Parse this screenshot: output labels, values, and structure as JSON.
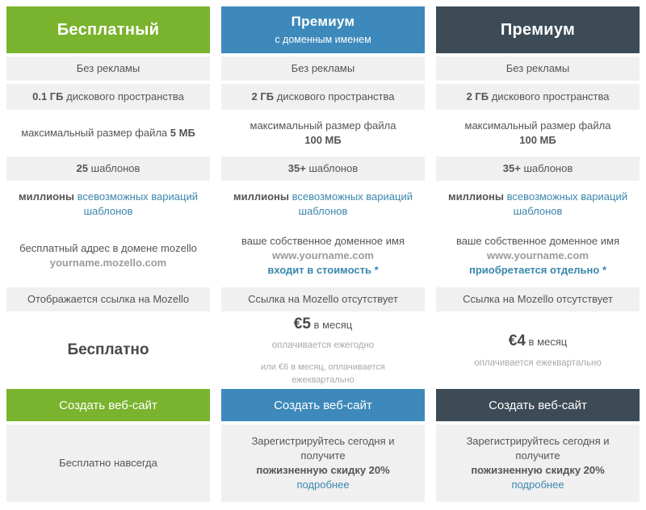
{
  "pricing_table": {
    "colors": {
      "green": "#7ab32d",
      "blue": "#3d89bb",
      "dark": "#3c4b56",
      "row_gray": "#f0f0f0",
      "body_text": "#555555",
      "accent_blue_text": "#3a87ad",
      "muted_domain_gray": "#9b9b9b"
    },
    "plans": [
      {
        "title": "Бесплатный",
        "subtitle": "",
        "ads": "Без рекламы",
        "disk": {
          "bold": "0.1 ГБ",
          "rest": "дискового пространства"
        },
        "filesize": {
          "pre": "максимальный размер файла",
          "bold": "5 МБ"
        },
        "templates": {
          "bold": "25",
          "rest": "шаблонов"
        },
        "millions": {
          "bold": "миллионы",
          "blue": "всевозможных вариаций шаблонов"
        },
        "domain": {
          "desc": "бесплатный адрес в домене mozello",
          "name": "yourname.mozello.com",
          "note": ""
        },
        "mozello_link": "Отображается ссылка на Mozello",
        "price": {
          "big": "Бесплатно",
          "suffix": "",
          "sub1": "",
          "sub2": ""
        },
        "button": "Создать веб-сайт",
        "footer": {
          "text": "Бесплатно навсегда",
          "bold": "",
          "link": ""
        }
      },
      {
        "title": "Премиум",
        "subtitle": "с доменным именем",
        "ads": "Без рекламы",
        "disk": {
          "bold": "2 ГБ",
          "rest": "дискового пространства"
        },
        "filesize": {
          "pre": "максимальный размер файла",
          "bold": "100 МБ"
        },
        "templates": {
          "bold": "35+",
          "rest": "шаблонов"
        },
        "millions": {
          "bold": "миллионы",
          "blue": "всевозможных вариаций шаблонов"
        },
        "domain": {
          "desc": "ваше собственное доменное имя",
          "name": "www.yourname.com",
          "note": "входит в стоимость *"
        },
        "mozello_link": "Ссылка на Mozello отсутствует",
        "price": {
          "big": "€5",
          "suffix": "в месяц",
          "sub1": "оплачивается ежегодно",
          "sub2": "или €6 в месяц, оплачивается ежеквартально"
        },
        "button": "Создать веб-сайт",
        "footer": {
          "text": "Зарегистрируйтесь сегодня и получите",
          "bold": "пожизненную скидку 20%",
          "link": "подробнее"
        }
      },
      {
        "title": "Премиум",
        "subtitle": "",
        "ads": "Без рекламы",
        "disk": {
          "bold": "2 ГБ",
          "rest": "дискового пространства"
        },
        "filesize": {
          "pre": "максимальный размер файла",
          "bold": "100 МБ"
        },
        "templates": {
          "bold": "35+",
          "rest": "шаблонов"
        },
        "millions": {
          "bold": "миллионы",
          "blue": "всевозможных вариаций шаблонов"
        },
        "domain": {
          "desc": "ваше собственное доменное имя",
          "name": "www.yourname.com",
          "note": "приобретается отдельно *"
        },
        "mozello_link": "Ссылка на Mozello отсутствует",
        "price": {
          "big": "€4",
          "suffix": "в месяц",
          "sub1": "оплачивается ежеквартально",
          "sub2": ""
        },
        "button": "Создать веб-сайт",
        "footer": {
          "text": "Зарегистрируйтесь сегодня и получите",
          "bold": "пожизненную скидку 20%",
          "link": "подробнее"
        }
      }
    ]
  }
}
